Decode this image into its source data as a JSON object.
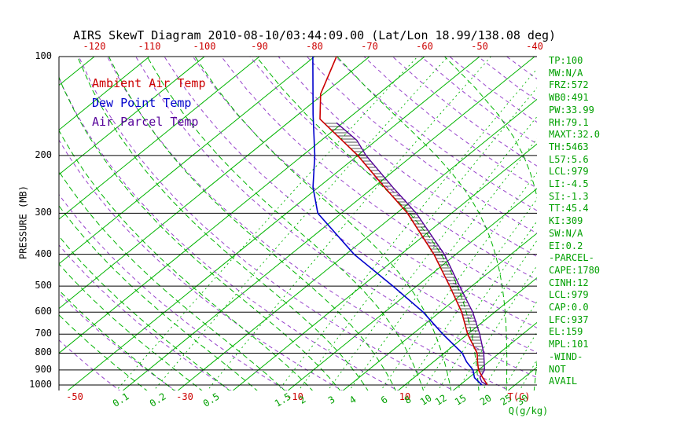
{
  "title": "AIRS SkewT Diagram 2010-08-10/03:44:09.00 (Lat/Lon 18.99/138.08 deg)",
  "colors": {
    "red": "#cc0000",
    "blue": "#0000cc",
    "line_green": "#00b400",
    "text_green": "#00a000",
    "dry_adiabat_purple": "#9944cc",
    "parcel_purple": "#550099",
    "black": "#000000",
    "hatch": "#111111"
  },
  "legend": {
    "items": [
      {
        "label": "Ambient Air Temp",
        "color": "#cc0000"
      },
      {
        "label": "Dew Point Temp",
        "color": "#0000cc"
      },
      {
        "label": "Air Parcel Temp",
        "color": "#550099"
      }
    ]
  },
  "parameters": {
    "lines": [
      "TP:100",
      "MW:N/A",
      "FRZ:572",
      "WB0:491",
      "PW:33.99",
      "RH:79.1",
      "MAXT:32.0",
      "TH:5463",
      "L57:5.6",
      "LCL:979",
      "LI:-4.5",
      "SI:-1.3",
      "TT:45.4",
      "KI:309",
      "SW:N/A",
      "EI:0.2",
      "-PARCEL-",
      "CAPE:1780",
      "CINH:12",
      "LCL:979",
      "CAP:0.0",
      "LFC:937",
      "EL:159",
      "MPL:101",
      "-WIND-",
      "NOT",
      "AVAIL"
    ]
  },
  "chart_data": {
    "type": "line",
    "projection": "skew-t-log-p",
    "title": "AIRS SkewT Diagram 2010-08-10/03:44:09.00 (Lat/Lon 18.99/138.08 deg)",
    "y_axis": {
      "label": "PRESSURE (MB)",
      "scale": "log",
      "range_mb": [
        100,
        1000
      ],
      "ticks_mb": [
        100,
        200,
        300,
        400,
        500,
        600,
        700,
        800,
        900,
        1000
      ]
    },
    "x_axis": {
      "label": "T(C)",
      "top_ticks_c": [
        -120,
        -110,
        -100,
        -90,
        -80,
        -70,
        -60,
        -50,
        -40
      ],
      "bottom_ticks_c": [
        -50,
        -30,
        -10,
        10
      ]
    },
    "mixing_ratio_axis": {
      "label": "Q(g/kg)",
      "ticks_g_kg": [
        0.1,
        0.2,
        0.5,
        1.5,
        2,
        3,
        4,
        6,
        8,
        10,
        12,
        15,
        20,
        25,
        30
      ]
    },
    "series": [
      {
        "name": "Ambient Air Temp",
        "color": "#cc0000",
        "points_p_t": [
          [
            1000,
            25.0
          ],
          [
            950,
            22.5
          ],
          [
            900,
            20.0
          ],
          [
            850,
            18.0
          ],
          [
            800,
            16.0
          ],
          [
            700,
            10.0
          ],
          [
            600,
            4.0
          ],
          [
            500,
            -4.0
          ],
          [
            400,
            -14.0
          ],
          [
            300,
            -28.0
          ],
          [
            250,
            -38.0
          ],
          [
            200,
            -50.0
          ],
          [
            155,
            -65.0
          ],
          [
            130,
            -70.5
          ],
          [
            100,
            -76.0
          ]
        ]
      },
      {
        "name": "Dew Point Temp",
        "color": "#0000cc",
        "points_p_t": [
          [
            1000,
            24.0
          ],
          [
            950,
            21.0
          ],
          [
            900,
            19.0
          ],
          [
            850,
            16.0
          ],
          [
            800,
            13.3
          ],
          [
            700,
            5.5
          ],
          [
            600,
            -3.0
          ],
          [
            500,
            -14.3
          ],
          [
            400,
            -28.5
          ],
          [
            300,
            -44.3
          ],
          [
            250,
            -51.0
          ],
          [
            200,
            -57.8
          ],
          [
            150,
            -67.3
          ],
          [
            100,
            -80.3
          ]
        ]
      },
      {
        "name": "Air Parcel Temp",
        "color": "#550099",
        "points_p_t": [
          [
            1000,
            25.0
          ],
          [
            979,
            23.3
          ],
          [
            950,
            22.0
          ],
          [
            900,
            21.1
          ],
          [
            850,
            19.2
          ],
          [
            800,
            17.2
          ],
          [
            700,
            12.2
          ],
          [
            600,
            6.0
          ],
          [
            500,
            -2.2
          ],
          [
            400,
            -12.1
          ],
          [
            300,
            -26.4
          ],
          [
            250,
            -36.5
          ],
          [
            200,
            -48.5
          ],
          [
            180,
            -53.5
          ],
          [
            159,
            -61.2
          ]
        ]
      }
    ],
    "cape_hatch": {
      "between": [
        "Air Parcel Temp",
        "Ambient Air Temp"
      ],
      "style": "horizontal-hatch",
      "pressure_range_mb": [
        159,
        935
      ]
    },
    "background": {
      "isotherms_c": {
        "from": -130,
        "to": 40,
        "step": 10,
        "style": "solid-green"
      },
      "dry_adiabats_k": {
        "from": 230,
        "to": 500,
        "step": 10,
        "style": "dashed-purple"
      },
      "moist_adiabats_start_c": {
        "from": -35,
        "to": 35,
        "step": 5,
        "style": "dashed-green"
      },
      "mixing_ratio_lines_g_kg": [
        0.1,
        0.2,
        0.5,
        1.5,
        2,
        3,
        4,
        6,
        8,
        10,
        12,
        15,
        20,
        25,
        30
      ]
    }
  }
}
